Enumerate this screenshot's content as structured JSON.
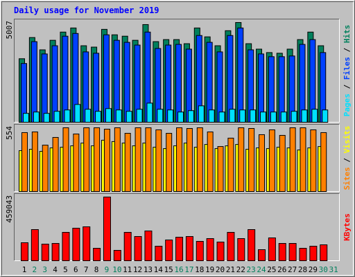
{
  "title": "Daily usage for November 2019",
  "separator": " / ",
  "categories": [
    "1",
    "2",
    "3",
    "4",
    "5",
    "6",
    "7",
    "8",
    "9",
    "10",
    "11",
    "12",
    "13",
    "14",
    "15",
    "16",
    "17",
    "18",
    "19",
    "20",
    "21",
    "22",
    "23",
    "24",
    "25",
    "26",
    "27",
    "28",
    "29",
    "30",
    "31"
  ],
  "category_colors": [
    "#000000",
    "#00805c",
    "#00805c",
    "#000000",
    "#000000",
    "#000000",
    "#000000",
    "#000000",
    "#00805c",
    "#00805c",
    "#000000",
    "#000000",
    "#000000",
    "#000000",
    "#000000",
    "#00805c",
    "#00805c",
    "#000000",
    "#000000",
    "#000000",
    "#000000",
    "#000000",
    "#00805c",
    "#00805c",
    "#000000",
    "#000000",
    "#000000",
    "#000000",
    "#000000",
    "#00805c",
    "#00805c"
  ],
  "chart_data": [
    {
      "type": "bar",
      "ylim": [
        0,
        5007
      ],
      "yticks": [
        5007
      ],
      "series": [
        {
          "name": "Pages",
          "color": "#00e0ff",
          "values": [
            446,
            514,
            446,
            549,
            617,
            892,
            652,
            549,
            686,
            617,
            549,
            652,
            960,
            652,
            617,
            514,
            583,
            823,
            617,
            514,
            652,
            617,
            617,
            514,
            514,
            514,
            549,
            617,
            652,
            617,
            null
          ]
        },
        {
          "name": "Files",
          "color": "#0040ff",
          "values": [
            2949,
            4047,
            3429,
            3841,
            4321,
            4458,
            3532,
            3464,
            4390,
            4115,
            4012,
            3875,
            4527,
            3704,
            3875,
            3909,
            3670,
            4355,
            4012,
            3532,
            4355,
            4733,
            3635,
            3429,
            3292,
            3292,
            3327,
            3909,
            4150,
            3498,
            null
          ]
        },
        {
          "name": "Hits",
          "color": "#00805c",
          "values": [
            3189,
            4253,
            3635,
            4115,
            4527,
            4733,
            3841,
            3772,
            4664,
            4390,
            4321,
            4115,
            4904,
            4047,
            4150,
            4150,
            3944,
            4733,
            4287,
            3841,
            4596,
            5007,
            3944,
            3670,
            3498,
            3464,
            3670,
            4150,
            4527,
            3841,
            null
          ]
        }
      ]
    },
    {
      "type": "bar",
      "ylim": [
        0,
        554
      ],
      "yticks": [
        554
      ],
      "series": [
        {
          "name": "Sites",
          "color": "#ff8000",
          "values": [
            512,
            518,
            403,
            470,
            554,
            500,
            554,
            554,
            542,
            554,
            506,
            554,
            554,
            536,
            506,
            554,
            548,
            554,
            518,
            391,
            464,
            554,
            548,
            494,
            536,
            488,
            554,
            554,
            536,
            512,
            null
          ]
        },
        {
          "name": "Visits",
          "color": "#ffff00",
          "values": [
            355,
            367,
            349,
            379,
            385,
            397,
            421,
            397,
            446,
            434,
            421,
            397,
            421,
            385,
            373,
            397,
            421,
            385,
            409,
            373,
            397,
            409,
            367,
            379,
            373,
            385,
            379,
            361,
            379,
            391,
            null
          ]
        }
      ]
    },
    {
      "type": "bar",
      "ylim": [
        0,
        459043
      ],
      "yticks": [
        459043
      ],
      "series": [
        {
          "name": "KBytes",
          "color": "#ff0000",
          "values": [
            129730,
            224530,
            119750,
            124740,
            204570,
            234500,
            244480,
            89810,
            459043,
            74840,
            204570,
            174630,
            214550,
            104780,
            149690,
            169640,
            174630,
            139710,
            159660,
            134720,
            204570,
            159660,
            224530,
            79830,
            164650,
            124740,
            124740,
            89810,
            104780,
            114760,
            null
          ]
        }
      ]
    }
  ]
}
